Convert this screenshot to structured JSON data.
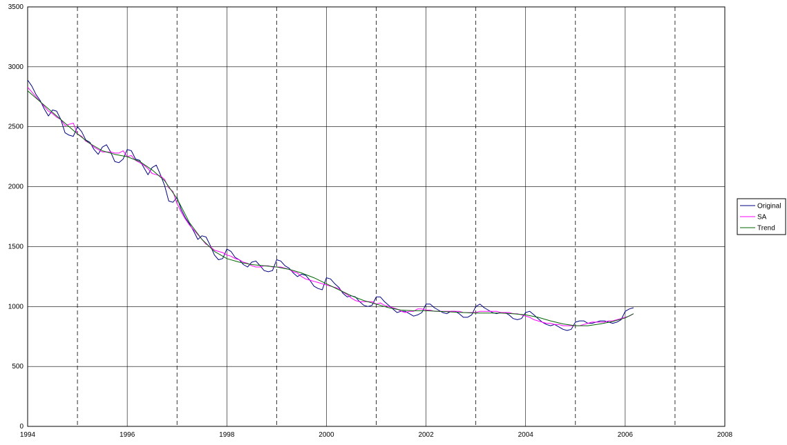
{
  "chart_data": {
    "type": "line",
    "title": "",
    "xlabel": "",
    "ylabel": "",
    "xlim": [
      1994,
      2008
    ],
    "ylim": [
      0,
      3500
    ],
    "x_ticks": [
      "1994",
      "1996",
      "1998",
      "2000",
      "2002",
      "2004",
      "2006",
      "2008"
    ],
    "y_ticks": [
      "0",
      "500",
      "1000",
      "1500",
      "2000",
      "2500",
      "3000",
      "3500"
    ],
    "grid": true,
    "dashed_year_lines": [
      1995,
      1997,
      1999,
      2001,
      2003,
      2005,
      2007
    ],
    "legend_position": "right",
    "series": [
      {
        "name": "Original",
        "color": "#000080",
        "x": [
          1994.0,
          1994.083,
          1994.167,
          1994.25,
          1994.333,
          1994.417,
          1994.5,
          1994.583,
          1994.667,
          1994.75,
          1994.833,
          1994.917,
          1995.0,
          1995.083,
          1995.167,
          1995.25,
          1995.333,
          1995.417,
          1995.5,
          1995.583,
          1995.667,
          1995.75,
          1995.833,
          1995.917,
          1996.0,
          1996.083,
          1996.167,
          1996.25,
          1996.333,
          1996.417,
          1996.5,
          1996.583,
          1996.667,
          1996.75,
          1996.833,
          1996.917,
          1997.0,
          1997.083,
          1997.167,
          1997.25,
          1997.333,
          1997.417,
          1997.5,
          1997.583,
          1997.667,
          1997.75,
          1997.833,
          1997.917,
          1998.0,
          1998.083,
          1998.167,
          1998.25,
          1998.333,
          1998.417,
          1998.5,
          1998.583,
          1998.667,
          1998.75,
          1998.833,
          1998.917,
          1999.0,
          1999.083,
          1999.167,
          1999.25,
          1999.333,
          1999.417,
          1999.5,
          1999.583,
          1999.667,
          1999.75,
          1999.833,
          1999.917,
          2000.0,
          2000.083,
          2000.167,
          2000.25,
          2000.333,
          2000.417,
          2000.5,
          2000.583,
          2000.667,
          2000.75,
          2000.833,
          2000.917,
          2001.0,
          2001.083,
          2001.167,
          2001.25,
          2001.333,
          2001.417,
          2001.5,
          2001.583,
          2001.667,
          2001.75,
          2001.833,
          2001.917,
          2002.0,
          2002.083,
          2002.167,
          2002.25,
          2002.333,
          2002.417,
          2002.5,
          2002.583,
          2002.667,
          2002.75,
          2002.833,
          2002.917,
          2003.0,
          2003.083,
          2003.167,
          2003.25,
          2003.333,
          2003.417,
          2003.5,
          2003.583,
          2003.667,
          2003.75,
          2003.833,
          2003.917,
          2004.0,
          2004.083,
          2004.167,
          2004.25,
          2004.333,
          2004.417,
          2004.5,
          2004.583,
          2004.667,
          2004.75,
          2004.833,
          2004.917,
          2005.0,
          2005.083,
          2005.167,
          2005.25,
          2005.333,
          2005.417,
          2005.5,
          2005.583,
          2005.667,
          2005.75,
          2005.833,
          2005.917,
          2006.0,
          2006.083,
          2006.167
        ],
        "y": [
          2890,
          2840,
          2770,
          2720,
          2650,
          2590,
          2640,
          2630,
          2560,
          2450,
          2430,
          2420,
          2500,
          2460,
          2390,
          2370,
          2310,
          2270,
          2330,
          2350,
          2290,
          2210,
          2200,
          2230,
          2310,
          2300,
          2230,
          2220,
          2160,
          2100,
          2160,
          2180,
          2100,
          2010,
          1880,
          1870,
          1910,
          1810,
          1740,
          1690,
          1630,
          1560,
          1590,
          1580,
          1510,
          1430,
          1390,
          1400,
          1480,
          1460,
          1410,
          1390,
          1350,
          1330,
          1370,
          1380,
          1340,
          1300,
          1290,
          1300,
          1390,
          1380,
          1340,
          1320,
          1280,
          1250,
          1270,
          1260,
          1220,
          1170,
          1150,
          1140,
          1240,
          1230,
          1190,
          1160,
          1110,
          1080,
          1090,
          1080,
          1040,
          1010,
          1000,
          1010,
          1080,
          1080,
          1040,
          1010,
          980,
          950,
          960,
          960,
          940,
          920,
          930,
          950,
          1020,
          1020,
          990,
          970,
          950,
          940,
          960,
          960,
          940,
          910,
          910,
          930,
          1000,
          1020,
          990,
          970,
          950,
          940,
          950,
          950,
          930,
          900,
          890,
          900,
          950,
          960,
          930,
          900,
          870,
          850,
          840,
          850,
          830,
          810,
          800,
          810,
          870,
          880,
          880,
          860,
          860,
          870,
          880,
          880,
          870,
          860,
          870,
          890,
          960,
          980,
          990
        ]
      },
      {
        "name": "SA",
        "color": "#FF00FF",
        "x": [
          1994.0,
          1994.083,
          1994.167,
          1994.25,
          1994.333,
          1994.417,
          1994.5,
          1994.583,
          1994.667,
          1994.75,
          1994.833,
          1994.917,
          1995.0,
          1995.083,
          1995.167,
          1995.25,
          1995.333,
          1995.417,
          1995.5,
          1995.583,
          1995.667,
          1995.75,
          1995.833,
          1995.917,
          1996.0,
          1996.083,
          1996.167,
          1996.25,
          1996.333,
          1996.417,
          1996.5,
          1996.583,
          1996.667,
          1996.75,
          1996.833,
          1996.917,
          1997.0,
          1997.083,
          1997.167,
          1997.25,
          1997.333,
          1997.417,
          1997.5,
          1997.583,
          1997.667,
          1997.75,
          1997.833,
          1997.917,
          1998.0,
          1998.083,
          1998.167,
          1998.25,
          1998.333,
          1998.417,
          1998.5,
          1998.583,
          1998.667,
          1998.75,
          1998.833,
          1998.917,
          1999.0,
          1999.083,
          1999.167,
          1999.25,
          1999.333,
          1999.417,
          1999.5,
          1999.583,
          1999.667,
          1999.75,
          1999.833,
          1999.917,
          2000.0,
          2000.083,
          2000.167,
          2000.25,
          2000.333,
          2000.417,
          2000.5,
          2000.583,
          2000.667,
          2000.75,
          2000.833,
          2000.917,
          2001.0,
          2001.083,
          2001.167,
          2001.25,
          2001.333,
          2001.417,
          2001.5,
          2001.583,
          2001.667,
          2001.75,
          2001.833,
          2001.917,
          2002.0,
          2002.083,
          2002.167,
          2002.25,
          2002.333,
          2002.417,
          2002.5,
          2002.583,
          2002.667,
          2002.75,
          2002.833,
          2002.917,
          2003.0,
          2003.083,
          2003.167,
          2003.25,
          2003.333,
          2003.417,
          2003.5,
          2003.583,
          2003.667,
          2003.75,
          2003.833,
          2003.917,
          2004.0,
          2004.083,
          2004.167,
          2004.25,
          2004.333,
          2004.417,
          2004.5,
          2004.583,
          2004.667,
          2004.75,
          2004.833,
          2004.917,
          2005.0,
          2005.083,
          2005.167,
          2005.25,
          2005.333,
          2005.417,
          2005.5,
          2005.583,
          2005.667,
          2005.75,
          2005.833,
          2005.917,
          2006.0,
          2006.083,
          2006.167
        ],
        "y": [
          2830,
          2790,
          2750,
          2710,
          2670,
          2630,
          2610,
          2580,
          2560,
          2510,
          2520,
          2530,
          2440,
          2420,
          2380,
          2360,
          2330,
          2310,
          2290,
          2290,
          2290,
          2280,
          2280,
          2300,
          2250,
          2260,
          2220,
          2200,
          2180,
          2150,
          2110,
          2100,
          2090,
          2060,
          1990,
          1960,
          1860,
          1790,
          1730,
          1680,
          1640,
          1600,
          1560,
          1520,
          1500,
          1470,
          1460,
          1450,
          1430,
          1420,
          1400,
          1390,
          1370,
          1360,
          1340,
          1330,
          1330,
          1340,
          1340,
          1330,
          1330,
          1330,
          1320,
          1310,
          1290,
          1280,
          1250,
          1230,
          1220,
          1210,
          1200,
          1190,
          1180,
          1170,
          1160,
          1150,
          1120,
          1100,
          1070,
          1050,
          1040,
          1040,
          1040,
          1040,
          1020,
          1030,
          1010,
          1000,
          990,
          980,
          960,
          950,
          960,
          960,
          980,
          980,
          970,
          970,
          960,
          960,
          960,
          960,
          960,
          960,
          960,
          950,
          950,
          950,
          950,
          960,
          960,
          960,
          960,
          960,
          950,
          950,
          950,
          940,
          940,
          930,
          920,
          910,
          890,
          880,
          870,
          860,
          860,
          850,
          850,
          840,
          840,
          840,
          840,
          840,
          850,
          860,
          870,
          870,
          870,
          870,
          880,
          880,
          890,
          900,
          910,
          920,
          940
        ]
      },
      {
        "name": "Trend",
        "color": "#006400",
        "x": [
          1994.0,
          1994.25,
          1994.5,
          1994.75,
          1995.0,
          1995.25,
          1995.5,
          1995.75,
          1996.0,
          1996.25,
          1996.5,
          1996.75,
          1997.0,
          1997.25,
          1997.5,
          1997.75,
          1998.0,
          1998.25,
          1998.5,
          1998.75,
          1999.0,
          1999.25,
          1999.5,
          1999.75,
          2000.0,
          2000.25,
          2000.5,
          2000.75,
          2001.0,
          2001.25,
          2001.5,
          2001.75,
          2002.0,
          2002.25,
          2002.5,
          2002.75,
          2003.0,
          2003.25,
          2003.5,
          2003.75,
          2004.0,
          2004.25,
          2004.5,
          2004.75,
          2005.0,
          2005.25,
          2005.5,
          2005.75,
          2006.0,
          2006.167
        ],
        "y": [
          2800,
          2710,
          2620,
          2530,
          2440,
          2360,
          2300,
          2270,
          2250,
          2210,
          2140,
          2050,
          1900,
          1700,
          1560,
          1460,
          1400,
          1370,
          1350,
          1340,
          1330,
          1310,
          1280,
          1240,
          1190,
          1140,
          1090,
          1050,
          1020,
          990,
          970,
          965,
          965,
          960,
          955,
          950,
          945,
          945,
          945,
          940,
          930,
          910,
          880,
          855,
          840,
          840,
          855,
          875,
          905,
          940
        ]
      }
    ]
  }
}
